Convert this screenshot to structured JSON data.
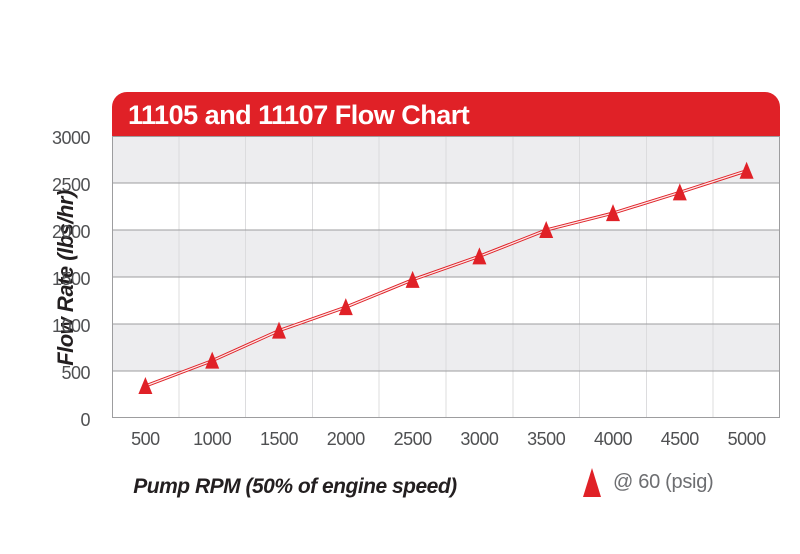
{
  "header": {
    "title": "11105 and 11107 Flow Chart"
  },
  "chart_data": {
    "type": "line",
    "title": "11105 and 11107 Flow Chart",
    "xlabel": "Pump RPM (50% of engine speed)",
    "ylabel": "Flow Rate (lbs/hr)",
    "x": [
      500,
      1000,
      1500,
      2000,
      2500,
      3000,
      3500,
      4000,
      4500,
      5000
    ],
    "xtick_labels": [
      "500",
      "1000",
      "1500",
      "2000",
      "2500",
      "3000",
      "3500",
      "4000",
      "4500",
      "5000"
    ],
    "ytick_labels": [
      "0",
      "500",
      "1000",
      "1500",
      "2000",
      "2500",
      "3000"
    ],
    "ylim": [
      0,
      3000
    ],
    "ytick_interval": 500,
    "series": [
      {
        "name": "@ 60 (psig)",
        "marker": "triangle",
        "color": "#e02127",
        "values": [
          340,
          610,
          930,
          1180,
          1470,
          1720,
          2000,
          2180,
          2400,
          2630
        ]
      }
    ],
    "grid": {
      "horizontal_major": true,
      "vertical_minor": true,
      "alternating_bands": true,
      "bands_top_first_color": "gray"
    },
    "legend": {
      "label": "@ 60 (psig)",
      "position": "below-right"
    }
  },
  "colors": {
    "red": "#e02127",
    "band_gray": "#ededef",
    "band_white": "#ffffff",
    "grid_major": "#9d9d9f",
    "grid_minor": "#dcdcde",
    "tick_text": "#4f5052",
    "title_text": "#231f20",
    "legend_text": "#6d6e71",
    "banner_text": "#ffffff",
    "background": "#ffffff"
  }
}
